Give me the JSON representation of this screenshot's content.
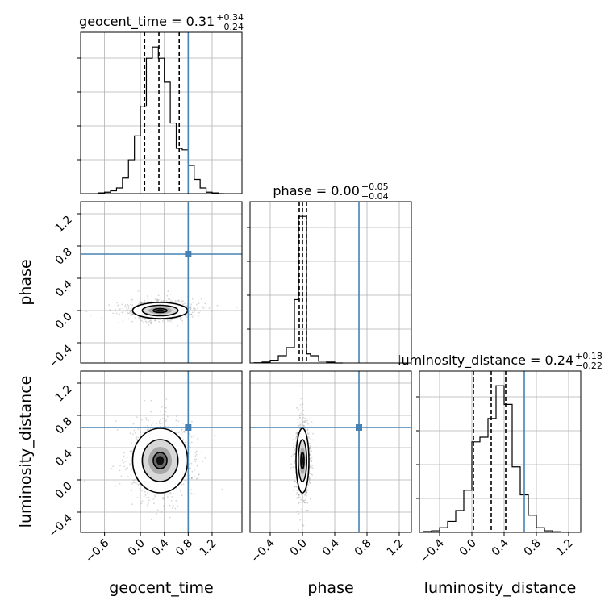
{
  "chart_data": {
    "type": "scatter",
    "parameters": [
      "geocent_time",
      "phase",
      "luminosity_distance"
    ],
    "axis_labels": [
      "geocent_time",
      "phase",
      "luminosity_distance"
    ],
    "ranges": [
      [
        -1.0,
        1.7
      ],
      [
        -0.65,
        1.35
      ],
      [
        -0.65,
        1.35
      ]
    ],
    "ticks": [
      [
        -0.6,
        0.0,
        0.4,
        0.8,
        1.2
      ],
      [
        -0.4,
        0.0,
        0.4,
        0.8,
        1.2
      ],
      [
        -0.4,
        0.0,
        0.4,
        0.8,
        1.2
      ]
    ],
    "tick_labels": [
      [
        "−0.6",
        "0.0",
        "0.4",
        "0.8",
        "1.2"
      ],
      [
        "−0.4",
        "0.0",
        "0.4",
        "0.8",
        "1.2"
      ],
      [
        "−0.4",
        "0.0",
        "0.4",
        "0.8",
        "1.2"
      ]
    ],
    "truths": [
      0.8,
      0.7,
      0.65
    ],
    "titles": [
      {
        "name": "geocent_time",
        "median": "0.31",
        "plus": "+0.34",
        "minus": "−0.24"
      },
      {
        "name": "phase",
        "median": "0.00",
        "plus": "+0.05",
        "minus": "−0.04"
      },
      {
        "name": "luminosity_distance",
        "median": "0.24",
        "plus": "+0.18",
        "minus": "−0.22"
      }
    ],
    "quantile_lines": [
      [
        0.07,
        0.31,
        0.65
      ],
      [
        -0.04,
        0.0,
        0.05
      ],
      [
        0.02,
        0.24,
        0.42
      ]
    ],
    "histograms": [
      {
        "edges": [
          -0.7,
          -0.6,
          -0.5,
          -0.4,
          -0.3,
          -0.2,
          -0.1,
          0.0,
          0.1,
          0.2,
          0.3,
          0.4,
          0.5,
          0.6,
          0.7,
          0.8,
          0.9,
          1.0,
          1.1,
          1.2,
          1.3,
          1.4
        ],
        "counts": [
          0.5,
          1,
          2,
          4,
          11,
          24,
          41,
          62,
          96,
          104,
          96,
          79,
          50,
          32,
          31,
          20,
          10,
          4,
          1,
          0.5,
          0
        ]
      },
      {
        "edges": [
          -0.6,
          -0.5,
          -0.4,
          -0.3,
          -0.2,
          -0.1,
          -0.05,
          0.0,
          0.05,
          0.1,
          0.2,
          0.3,
          0.4,
          0.5
        ],
        "counts": [
          0.3,
          1,
          3,
          8,
          17,
          70,
          162,
          162,
          10,
          8,
          2,
          1,
          0
        ]
      },
      {
        "edges": [
          -0.6,
          -0.5,
          -0.4,
          -0.3,
          -0.2,
          -0.1,
          0.0,
          0.1,
          0.2,
          0.3,
          0.4,
          0.5,
          0.6,
          0.7,
          0.8,
          0.9,
          1.0,
          1.1
        ],
        "counts": [
          0.5,
          1,
          3,
          7,
          14,
          27,
          58,
          61,
          73,
          94,
          82,
          42,
          24,
          11,
          3,
          1,
          0.4
        ]
      }
    ],
    "grid": true,
    "truth_color": "#4682b4"
  }
}
